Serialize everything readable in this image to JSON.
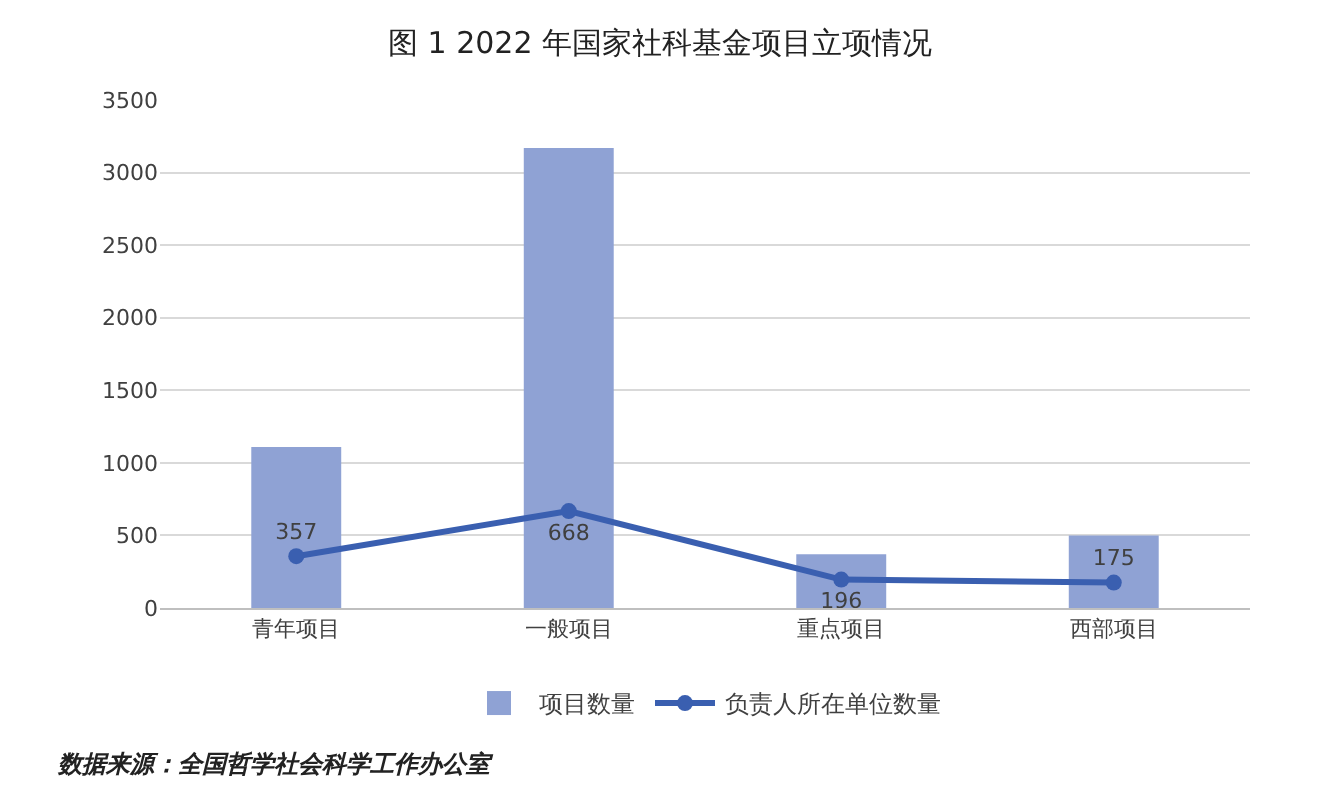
{
  "chart_data": {
    "type": "bar",
    "title": "图 1 2022 年国家社科基金项目立项情况",
    "categories": [
      "青年项目",
      "一般项目",
      "重点项目",
      "西部项目"
    ],
    "series": [
      {
        "name": "项目数量",
        "color": "#8fa2d4",
        "values": [
          1110,
          3170,
          370,
          500
        ]
      },
      {
        "name": "负责人所在单位数量",
        "type": "line",
        "color": "#3a5fb0",
        "values": [
          357,
          668,
          196,
          175
        ],
        "value_labels": [
          "357",
          "668",
          "196",
          "175"
        ]
      }
    ],
    "ylim": [
      0,
      3500
    ],
    "yticks": [
      0,
      500,
      1000,
      1500,
      2000,
      2500,
      3000,
      3500
    ],
    "grid": "y",
    "legend": "bottom",
    "marker": "circle",
    "line_style": "solid",
    "annotations": [
      "数据来源：全国哲学社会科学工作办公室"
    ]
  }
}
